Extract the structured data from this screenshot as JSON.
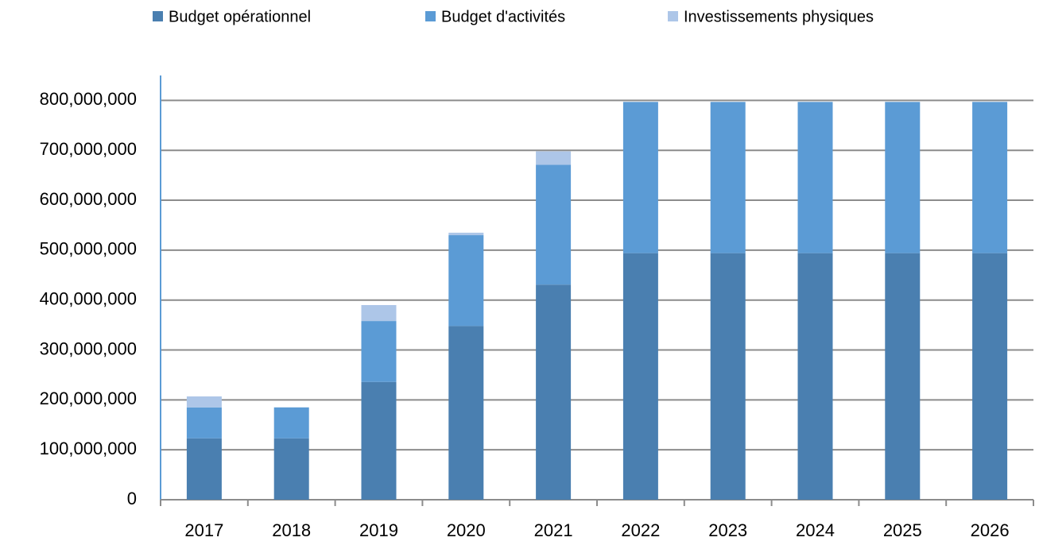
{
  "chart_data": {
    "type": "stacked_bar",
    "categories": [
      "2017",
      "2018",
      "2019",
      "2020",
      "2021",
      "2022",
      "2023",
      "2024",
      "2025",
      "2026"
    ],
    "series": [
      {
        "name": "Budget opérationnel",
        "color": "#4a7fb0",
        "values": [
          123000000,
          123000000,
          236000000,
          348000000,
          431000000,
          494000000,
          494000000,
          494000000,
          494000000,
          494000000
        ]
      },
      {
        "name": "Budget d'activités",
        "color": "#5b9bd5",
        "values": [
          62000000,
          62000000,
          122000000,
          182000000,
          240000000,
          303000000,
          303000000,
          303000000,
          303000000,
          303000000
        ]
      },
      {
        "name": "Investissements physiques",
        "color": "#adc6e8",
        "values": [
          22000000,
          0,
          32000000,
          5000000,
          27000000,
          0,
          0,
          0,
          0,
          0
        ]
      }
    ],
    "ylim": [
      0,
      850000000
    ],
    "yticks": [
      0,
      {
        "value": 100000000,
        "label": "100,000,000"
      },
      {
        "value": 200000000,
        "label": "200,000,000"
      },
      {
        "value": 300000000,
        "label": "300,000,000"
      },
      {
        "value": 400000000,
        "label": "400,000,000"
      },
      {
        "value": 500000000,
        "label": "500,000,000"
      },
      {
        "value": 600000000,
        "label": "600,000,000"
      },
      {
        "value": 700000000,
        "label": "700,000,000"
      },
      {
        "value": 800000000,
        "label": "800,000,000"
      }
    ],
    "grid": true,
    "legend": "top"
  }
}
